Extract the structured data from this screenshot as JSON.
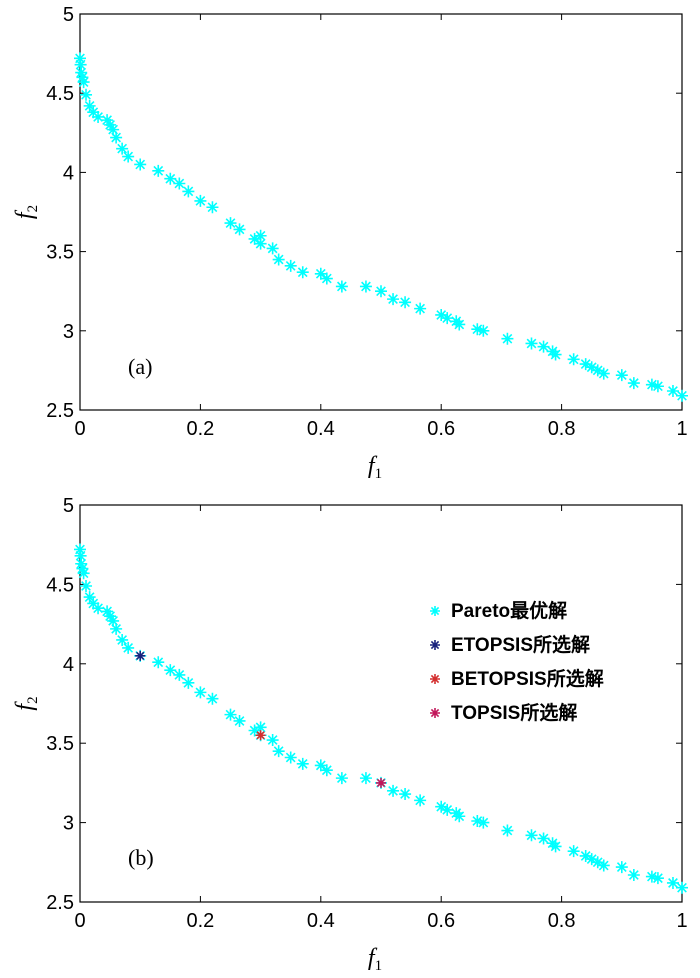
{
  "chart_data": [
    {
      "type": "scatter",
      "panel_label": "(a)",
      "xlabel": "f",
      "xlabel_sub": "1",
      "ylabel": "f",
      "ylabel_sub": "2",
      "xlim": [
        0,
        1
      ],
      "ylim": [
        2.5,
        5
      ],
      "xticks": [
        "0",
        "0.2",
        "0.4",
        "0.6",
        "0.8",
        "1"
      ],
      "yticks": [
        "2.5",
        "3",
        "3.5",
        "4",
        "4.5",
        "5"
      ],
      "grid": false,
      "series": [
        {
          "color": "#00ffff",
          "marker": "asterisk",
          "x": [
            0.0,
            0.001,
            0.002,
            0.004,
            0.006,
            0.01,
            0.016,
            0.022,
            0.03,
            0.045,
            0.05,
            0.055,
            0.06,
            0.07,
            0.08,
            0.1,
            0.13,
            0.15,
            0.165,
            0.18,
            0.2,
            0.22,
            0.25,
            0.265,
            0.29,
            0.3,
            0.3,
            0.32,
            0.33,
            0.35,
            0.37,
            0.4,
            0.41,
            0.435,
            0.475,
            0.5,
            0.52,
            0.54,
            0.565,
            0.6,
            0.61,
            0.625,
            0.63,
            0.66,
            0.67,
            0.71,
            0.75,
            0.77,
            0.785,
            0.79,
            0.82,
            0.84,
            0.85,
            0.86,
            0.87,
            0.9,
            0.92,
            0.95,
            0.96,
            0.985,
            1.0
          ],
          "y": [
            4.72,
            4.68,
            4.63,
            4.6,
            4.57,
            4.49,
            4.42,
            4.38,
            4.35,
            4.33,
            4.3,
            4.27,
            4.22,
            4.15,
            4.1,
            4.05,
            4.01,
            3.96,
            3.93,
            3.88,
            3.82,
            3.78,
            3.68,
            3.64,
            3.58,
            3.6,
            3.55,
            3.52,
            3.45,
            3.41,
            3.37,
            3.36,
            3.33,
            3.28,
            3.28,
            3.25,
            3.2,
            3.18,
            3.14,
            3.1,
            3.08,
            3.06,
            3.04,
            3.01,
            3.0,
            2.95,
            2.92,
            2.9,
            2.87,
            2.85,
            2.82,
            2.79,
            2.77,
            2.75,
            2.73,
            2.72,
            2.67,
            2.66,
            2.65,
            2.62,
            2.59
          ]
        }
      ]
    },
    {
      "type": "scatter",
      "panel_label": "(b)",
      "xlabel": "f",
      "xlabel_sub": "1",
      "ylabel": "f",
      "ylabel_sub": "2",
      "xlim": [
        0,
        1
      ],
      "ylim": [
        2.5,
        5
      ],
      "xticks": [
        "0",
        "0.2",
        "0.4",
        "0.6",
        "0.8",
        "1"
      ],
      "yticks": [
        "2.5",
        "3",
        "3.5",
        "4",
        "4.5",
        "5"
      ],
      "grid": false,
      "legend_position": "right",
      "series": [
        {
          "name": "Pareto最优解",
          "color": "#00ffff",
          "marker": "asterisk",
          "x": [
            0.0,
            0.001,
            0.002,
            0.004,
            0.006,
            0.01,
            0.016,
            0.022,
            0.03,
            0.045,
            0.05,
            0.055,
            0.06,
            0.07,
            0.08,
            0.1,
            0.13,
            0.15,
            0.165,
            0.18,
            0.2,
            0.22,
            0.25,
            0.265,
            0.29,
            0.3,
            0.3,
            0.32,
            0.33,
            0.35,
            0.37,
            0.4,
            0.41,
            0.435,
            0.475,
            0.5,
            0.52,
            0.54,
            0.565,
            0.6,
            0.61,
            0.625,
            0.63,
            0.66,
            0.67,
            0.71,
            0.75,
            0.77,
            0.785,
            0.79,
            0.82,
            0.84,
            0.85,
            0.86,
            0.87,
            0.9,
            0.92,
            0.95,
            0.96,
            0.985,
            1.0
          ],
          "y": [
            4.72,
            4.68,
            4.63,
            4.6,
            4.57,
            4.49,
            4.42,
            4.38,
            4.35,
            4.33,
            4.3,
            4.27,
            4.22,
            4.15,
            4.1,
            4.05,
            4.01,
            3.96,
            3.93,
            3.88,
            3.82,
            3.78,
            3.68,
            3.64,
            3.58,
            3.6,
            3.55,
            3.52,
            3.45,
            3.41,
            3.37,
            3.36,
            3.33,
            3.28,
            3.28,
            3.25,
            3.2,
            3.18,
            3.14,
            3.1,
            3.08,
            3.06,
            3.04,
            3.01,
            3.0,
            2.95,
            2.92,
            2.9,
            2.87,
            2.85,
            2.82,
            2.79,
            2.77,
            2.75,
            2.73,
            2.72,
            2.67,
            2.66,
            2.65,
            2.62,
            2.59
          ]
        },
        {
          "name": "ETOPSIS所选解",
          "color": "#1a237e",
          "marker": "asterisk",
          "x": [
            0.1
          ],
          "y": [
            4.05
          ]
        },
        {
          "name": "BETOPSIS所选解",
          "color": "#d32f2f",
          "marker": "asterisk",
          "x": [
            0.3
          ],
          "y": [
            3.55
          ]
        },
        {
          "name": "TOPSIS所选解",
          "color": "#c2185b",
          "marker": "asterisk",
          "x": [
            0.5
          ],
          "y": [
            3.25
          ]
        }
      ]
    }
  ]
}
